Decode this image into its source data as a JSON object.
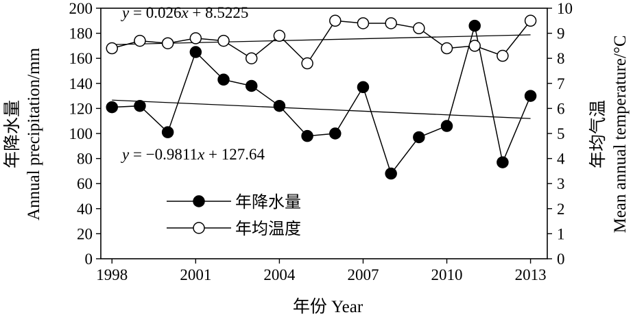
{
  "chart_data": {
    "type": "line",
    "x_title_cn": "年份",
    "x_title_en": "Year",
    "y_left_title_cn": "年降水量",
    "y_left_title_en": "Annual precipitation/mm",
    "y_right_title_cn": "年均气温",
    "y_right_title_en": "Mean annual temperature/°C",
    "xlim": [
      1997.6,
      2013.6
    ],
    "ylim_left": [
      0,
      200
    ],
    "ylim_right": [
      0,
      10
    ],
    "x_ticks": [
      1998,
      2001,
      2004,
      2007,
      2010,
      2013
    ],
    "y_left_ticks": [
      0,
      20,
      40,
      60,
      80,
      100,
      120,
      140,
      160,
      180,
      200
    ],
    "y_right_ticks": [
      0,
      1,
      2,
      3,
      4,
      5,
      6,
      7,
      8,
      9,
      10
    ],
    "x": [
      1998,
      1999,
      2000,
      2001,
      2002,
      2003,
      2004,
      2005,
      2006,
      2007,
      2008,
      2009,
      2010,
      2011,
      2012,
      2013
    ],
    "series": [
      {
        "name": "年降水量",
        "axis": "left",
        "marker": "filled-circle",
        "values": [
          121,
          122,
          101,
          165,
          143,
          138,
          122,
          98,
          100,
          137,
          68,
          97,
          106,
          186,
          77,
          130
        ]
      },
      {
        "name": "年均温度",
        "axis": "right",
        "marker": "open-circle",
        "values": [
          8.4,
          8.7,
          8.6,
          8.8,
          8.7,
          8.0,
          8.9,
          7.8,
          9.5,
          9.4,
          9.4,
          9.2,
          8.4,
          8.5,
          8.1,
          9.5
        ]
      }
    ],
    "trendlines": [
      {
        "series": "年降水量",
        "axis": "left",
        "slope": -0.9811,
        "intercept": 127.64,
        "label_prefix": "y",
        "label_body": " = −0.9811",
        "label_x": "x",
        "label_tail": " + 127.64"
      },
      {
        "series": "年均温度",
        "axis": "right",
        "slope": 0.026,
        "intercept": 8.5225,
        "label_prefix": "y",
        "label_body": " = 0.026",
        "label_x": "x",
        "label_tail": " + 8.5225"
      }
    ],
    "legend_position": "lower-left",
    "grid": false
  }
}
